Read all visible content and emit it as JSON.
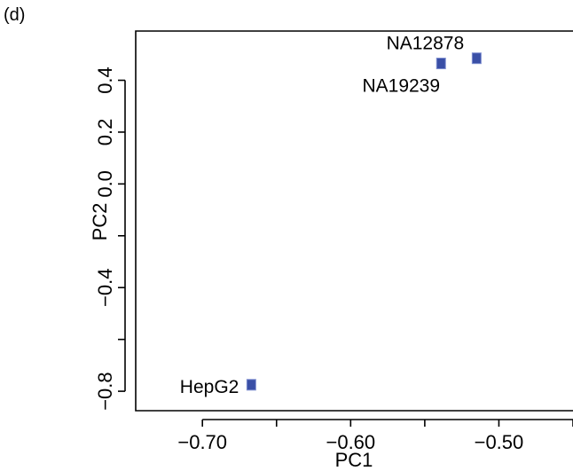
{
  "panel_label": "(d)",
  "chart_data": {
    "type": "scatter",
    "title": "",
    "xlabel": "PC1",
    "ylabel": "PC2",
    "xlim": [
      -0.745,
      -0.45
    ],
    "ylim": [
      -0.875,
      0.59
    ],
    "x_ticks": [
      -0.75,
      -0.7,
      -0.65,
      -0.6,
      -0.55,
      -0.5,
      -0.45
    ],
    "x_tick_labels": [
      {
        "value": -0.7,
        "label": "−0.70"
      },
      {
        "value": -0.6,
        "label": "−0.60"
      },
      {
        "value": -0.5,
        "label": "−0.50"
      }
    ],
    "y_ticks": [
      -0.8,
      -0.6,
      -0.4,
      -0.2,
      0.0,
      0.2,
      0.4
    ],
    "y_tick_labels": [
      {
        "value": -0.8,
        "label": "−0.8"
      },
      {
        "value": -0.4,
        "label": "−0.4"
      },
      {
        "value": 0.0,
        "label": "0.0"
      },
      {
        "value": 0.2,
        "label": "0.2"
      },
      {
        "value": 0.4,
        "label": "0.4"
      }
    ],
    "points": [
      {
        "label": "NA12878",
        "x": -0.515,
        "y": 0.485
      },
      {
        "label": "NA19239",
        "x": -0.539,
        "y": 0.465
      },
      {
        "label": "HepG2",
        "x": -0.667,
        "y": -0.775
      }
    ],
    "marker_color": "#3a4fa6",
    "grid": false,
    "legend": "none"
  }
}
